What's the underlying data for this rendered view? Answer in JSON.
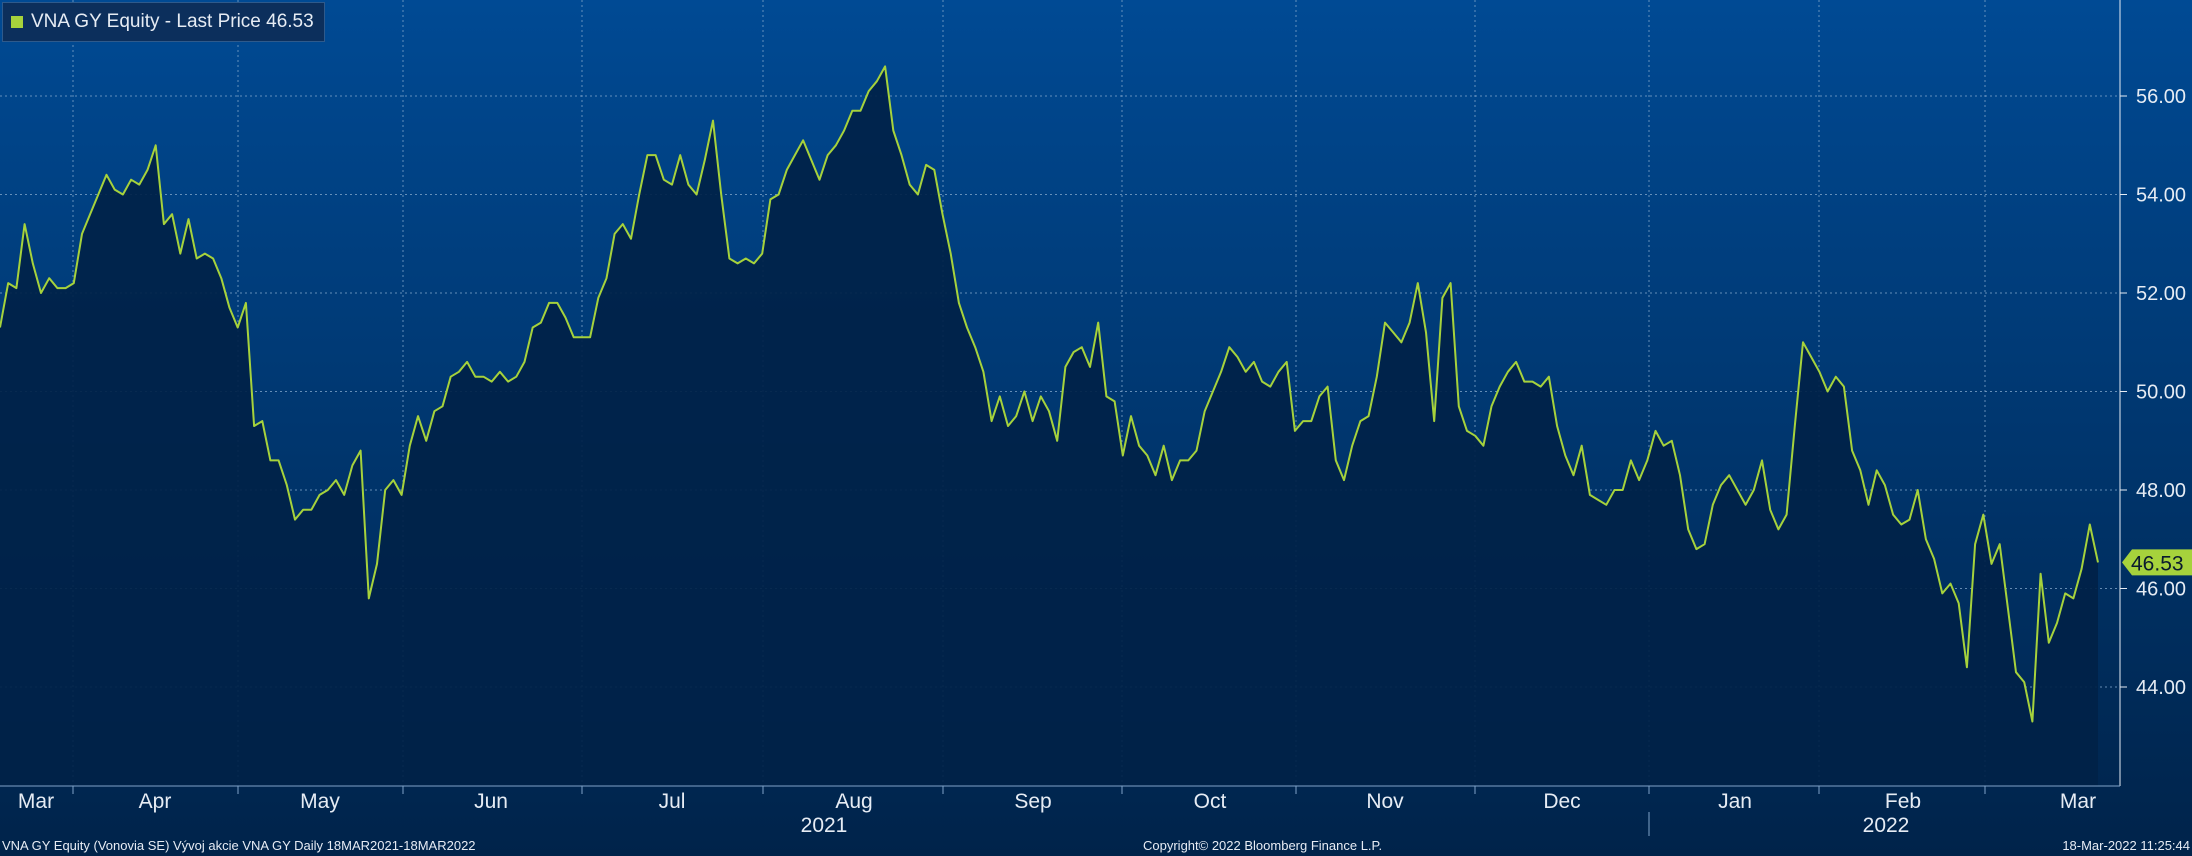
{
  "chart_data": {
    "type": "area",
    "title": "VNA GY Equity - Last Price 46.53",
    "legend": {
      "label": "VNA GY Equity - Last Price 46.53",
      "placement": "top-left"
    },
    "last_price_label": "46.53",
    "last_price": 46.53,
    "ylim": [
      42.0,
      58.0
    ],
    "y_ticks": [
      44,
      46,
      48,
      50,
      52,
      54,
      56
    ],
    "y_tick_labels": [
      "44.00",
      "46.00",
      "48.00",
      "50.00",
      "52.00",
      "54.00",
      "56.00"
    ],
    "month_labels": [
      "Mar",
      "Apr",
      "May",
      "Jun",
      "Jul",
      "Aug",
      "Sep",
      "Oct",
      "Nov",
      "Dec",
      "Jan",
      "Feb",
      "Mar"
    ],
    "year_labels": [
      "2021",
      "2022"
    ],
    "grid": true,
    "series": [
      {
        "name": "VNA GY Equity - Last Price",
        "values": [
          51.3,
          52.2,
          52.1,
          53.4,
          52.6,
          52.0,
          52.3,
          52.1,
          52.1,
          52.2,
          53.2,
          53.6,
          54.0,
          54.4,
          54.1,
          54.0,
          54.3,
          54.2,
          54.5,
          55.0,
          53.4,
          53.6,
          52.8,
          53.5,
          52.7,
          52.8,
          52.7,
          52.3,
          51.7,
          51.3,
          51.8,
          49.3,
          49.4,
          48.6,
          48.6,
          48.1,
          47.4,
          47.6,
          47.6,
          47.9,
          48.0,
          48.2,
          47.9,
          48.5,
          48.8,
          45.8,
          46.5,
          48.0,
          48.2,
          47.9,
          48.9,
          49.5,
          49.0,
          49.6,
          49.7,
          50.3,
          50.4,
          50.6,
          50.3,
          50.3,
          50.2,
          50.4,
          50.2,
          50.3,
          50.6,
          51.3,
          51.4,
          51.8,
          51.8,
          51.5,
          51.1,
          51.1,
          51.1,
          51.9,
          52.3,
          53.2,
          53.4,
          53.1,
          54.0,
          54.8,
          54.8,
          54.3,
          54.2,
          54.8,
          54.2,
          54.0,
          54.7,
          55.5,
          54.0,
          52.7,
          52.6,
          52.7,
          52.6,
          52.8,
          53.9,
          54.0,
          54.5,
          54.8,
          55.1,
          54.7,
          54.3,
          54.8,
          55.0,
          55.3,
          55.7,
          55.7,
          56.1,
          56.3,
          56.6,
          55.3,
          54.8,
          54.2,
          54.0,
          54.6,
          54.5,
          53.6,
          52.8,
          51.8,
          51.3,
          50.9,
          50.4,
          49.4,
          49.9,
          49.3,
          49.5,
          50.0,
          49.4,
          49.9,
          49.6,
          49.0,
          50.5,
          50.8,
          50.9,
          50.5,
          51.4,
          49.9,
          49.8,
          48.7,
          49.5,
          48.9,
          48.7,
          48.3,
          48.9,
          48.2,
          48.6,
          48.6,
          48.8,
          49.6,
          50.0,
          50.4,
          50.9,
          50.7,
          50.4,
          50.6,
          50.2,
          50.1,
          50.4,
          50.6,
          49.2,
          49.4,
          49.4,
          49.9,
          50.1,
          48.6,
          48.2,
          48.9,
          49.4,
          49.5,
          50.3,
          51.4,
          51.2,
          51.0,
          51.4,
          52.2,
          51.2,
          49.4,
          51.9,
          52.2,
          49.7,
          49.2,
          49.1,
          48.9,
          49.7,
          50.1,
          50.4,
          50.6,
          50.2,
          50.2,
          50.1,
          50.3,
          49.3,
          48.7,
          48.3,
          48.9,
          47.9,
          47.8,
          47.7,
          48.0,
          48.0,
          48.6,
          48.2,
          48.6,
          49.2,
          48.9,
          49.0,
          48.3,
          47.2,
          46.8,
          46.9,
          47.7,
          48.1,
          48.3,
          48.0,
          47.7,
          48.0,
          48.6,
          47.6,
          47.2,
          47.5,
          49.3,
          51.0,
          50.7,
          50.4,
          50.0,
          50.3,
          50.1,
          48.8,
          48.4,
          47.7,
          48.4,
          48.1,
          47.5,
          47.3,
          47.4,
          48.0,
          47.0,
          46.6,
          45.9,
          46.1,
          45.7,
          44.4,
          46.9,
          47.5,
          46.5,
          46.9,
          45.6,
          44.3,
          44.1,
          43.3,
          46.3,
          44.9,
          45.3,
          45.9,
          45.8,
          46.4,
          47.3,
          46.53
        ]
      }
    ]
  },
  "footer": {
    "left": "VNA GY Equity (Vonovia SE) Vývoj akcie VNA GY  Daily 18MAR2021-18MAR2022",
    "center": "Copyright© 2022 Bloomberg Finance L.P.",
    "right": "18-Mar-2022 11:25:44"
  },
  "colors": {
    "background_top": "#004a94",
    "background_bottom": "#00234a",
    "area_fill": "#002248",
    "line": "#a6d23c",
    "grid": "#7fa3c8",
    "text": "#e6ecf4",
    "badge": "#a6d23c"
  }
}
